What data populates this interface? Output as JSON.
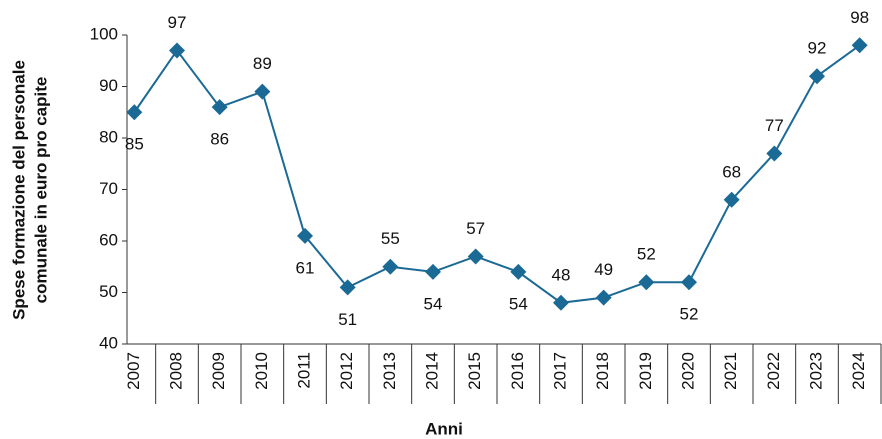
{
  "chart_data": {
    "type": "line",
    "ylabel": [
      "Spese formazione del personale",
      "comunale in euro pro capite"
    ],
    "xlabel": "Anni",
    "categories": [
      "2007",
      "2008",
      "2009",
      "2010",
      "2011",
      "2012",
      "2013",
      "2014",
      "2015",
      "2016",
      "2017",
      "2018",
      "2019",
      "2020",
      "2021",
      "2022",
      "2023",
      "2024"
    ],
    "series": [
      {
        "name": "Spese",
        "color": "#1b6a96",
        "values": [
          85,
          97,
          86,
          89,
          61,
          51,
          55,
          54,
          57,
          54,
          48,
          49,
          52,
          52,
          68,
          77,
          92,
          98
        ]
      }
    ],
    "ylim": [
      40,
      100
    ],
    "yticks": [
      40,
      50,
      60,
      70,
      80,
      90,
      100
    ]
  }
}
